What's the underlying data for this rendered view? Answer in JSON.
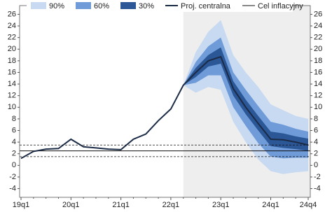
{
  "chart_data": {
    "type": "fan",
    "categories": [
      "19q1",
      null,
      null,
      null,
      "20q1",
      null,
      null,
      null,
      "21q1",
      null,
      null,
      null,
      "22q1",
      null,
      null,
      null,
      "23q1",
      null,
      null,
      null,
      "24q1",
      null,
      null,
      "24q4"
    ],
    "bands": [
      {
        "name": "90%",
        "color": "#c8daf1",
        "lower": [
          null,
          null,
          null,
          null,
          null,
          null,
          null,
          null,
          null,
          null,
          null,
          null,
          null,
          13.8,
          12.5,
          13.5,
          13.0,
          7.5,
          4.0,
          1.0,
          -1.0,
          -1.5,
          -1.2,
          -1.0
        ],
        "upper": [
          null,
          null,
          null,
          null,
          null,
          null,
          null,
          null,
          null,
          null,
          null,
          null,
          null,
          13.8,
          19.5,
          23.0,
          25.0,
          19.0,
          16.0,
          13.5,
          10.5,
          9.5,
          8.5,
          8.0
        ]
      },
      {
        "name": "60%",
        "color": "#6f9bd8",
        "lower": [
          null,
          null,
          null,
          null,
          null,
          null,
          null,
          null,
          null,
          null,
          null,
          null,
          null,
          13.8,
          14.2,
          15.5,
          15.5,
          10.0,
          6.8,
          3.8,
          1.5,
          1.2,
          1.3,
          1.3
        ],
        "upper": [
          null,
          null,
          null,
          null,
          null,
          null,
          null,
          null,
          null,
          null,
          null,
          null,
          null,
          13.8,
          17.8,
          20.5,
          22.0,
          16.0,
          13.0,
          10.2,
          7.5,
          7.0,
          6.3,
          5.8
        ]
      },
      {
        "name": "30%",
        "color": "#2b5797",
        "lower": [
          null,
          null,
          null,
          null,
          null,
          null,
          null,
          null,
          null,
          null,
          null,
          null,
          null,
          13.8,
          15.2,
          17.0,
          17.5,
          12.0,
          8.8,
          6.0,
          3.3,
          3.0,
          2.8,
          2.5
        ],
        "upper": [
          null,
          null,
          null,
          null,
          null,
          null,
          null,
          null,
          null,
          null,
          null,
          null,
          null,
          13.8,
          16.8,
          19.0,
          20.3,
          14.5,
          11.3,
          8.5,
          5.8,
          5.5,
          5.0,
          4.6
        ]
      }
    ],
    "series": [
      {
        "name": "Proj. centralna",
        "color": "#1b2a45",
        "values": [
          1.2,
          2.4,
          2.8,
          2.9,
          4.5,
          3.2,
          3.0,
          2.8,
          2.7,
          4.5,
          5.4,
          7.7,
          9.7,
          13.8,
          16.0,
          18.0,
          18.7,
          13.2,
          10.0,
          7.2,
          4.5,
          4.4,
          4.0,
          3.5
        ]
      }
    ],
    "target": {
      "name": "Cel inflacyjny",
      "value": 2.5,
      "band": [
        1.5,
        3.5
      ],
      "color": "#111111"
    },
    "ylim": [
      -5.5,
      27.5
    ],
    "yticks": [
      -4,
      -2,
      0,
      2,
      4,
      6,
      8,
      10,
      12,
      14,
      16,
      18,
      20,
      22,
      24,
      26
    ],
    "projection_shade": "#eeeeee"
  }
}
